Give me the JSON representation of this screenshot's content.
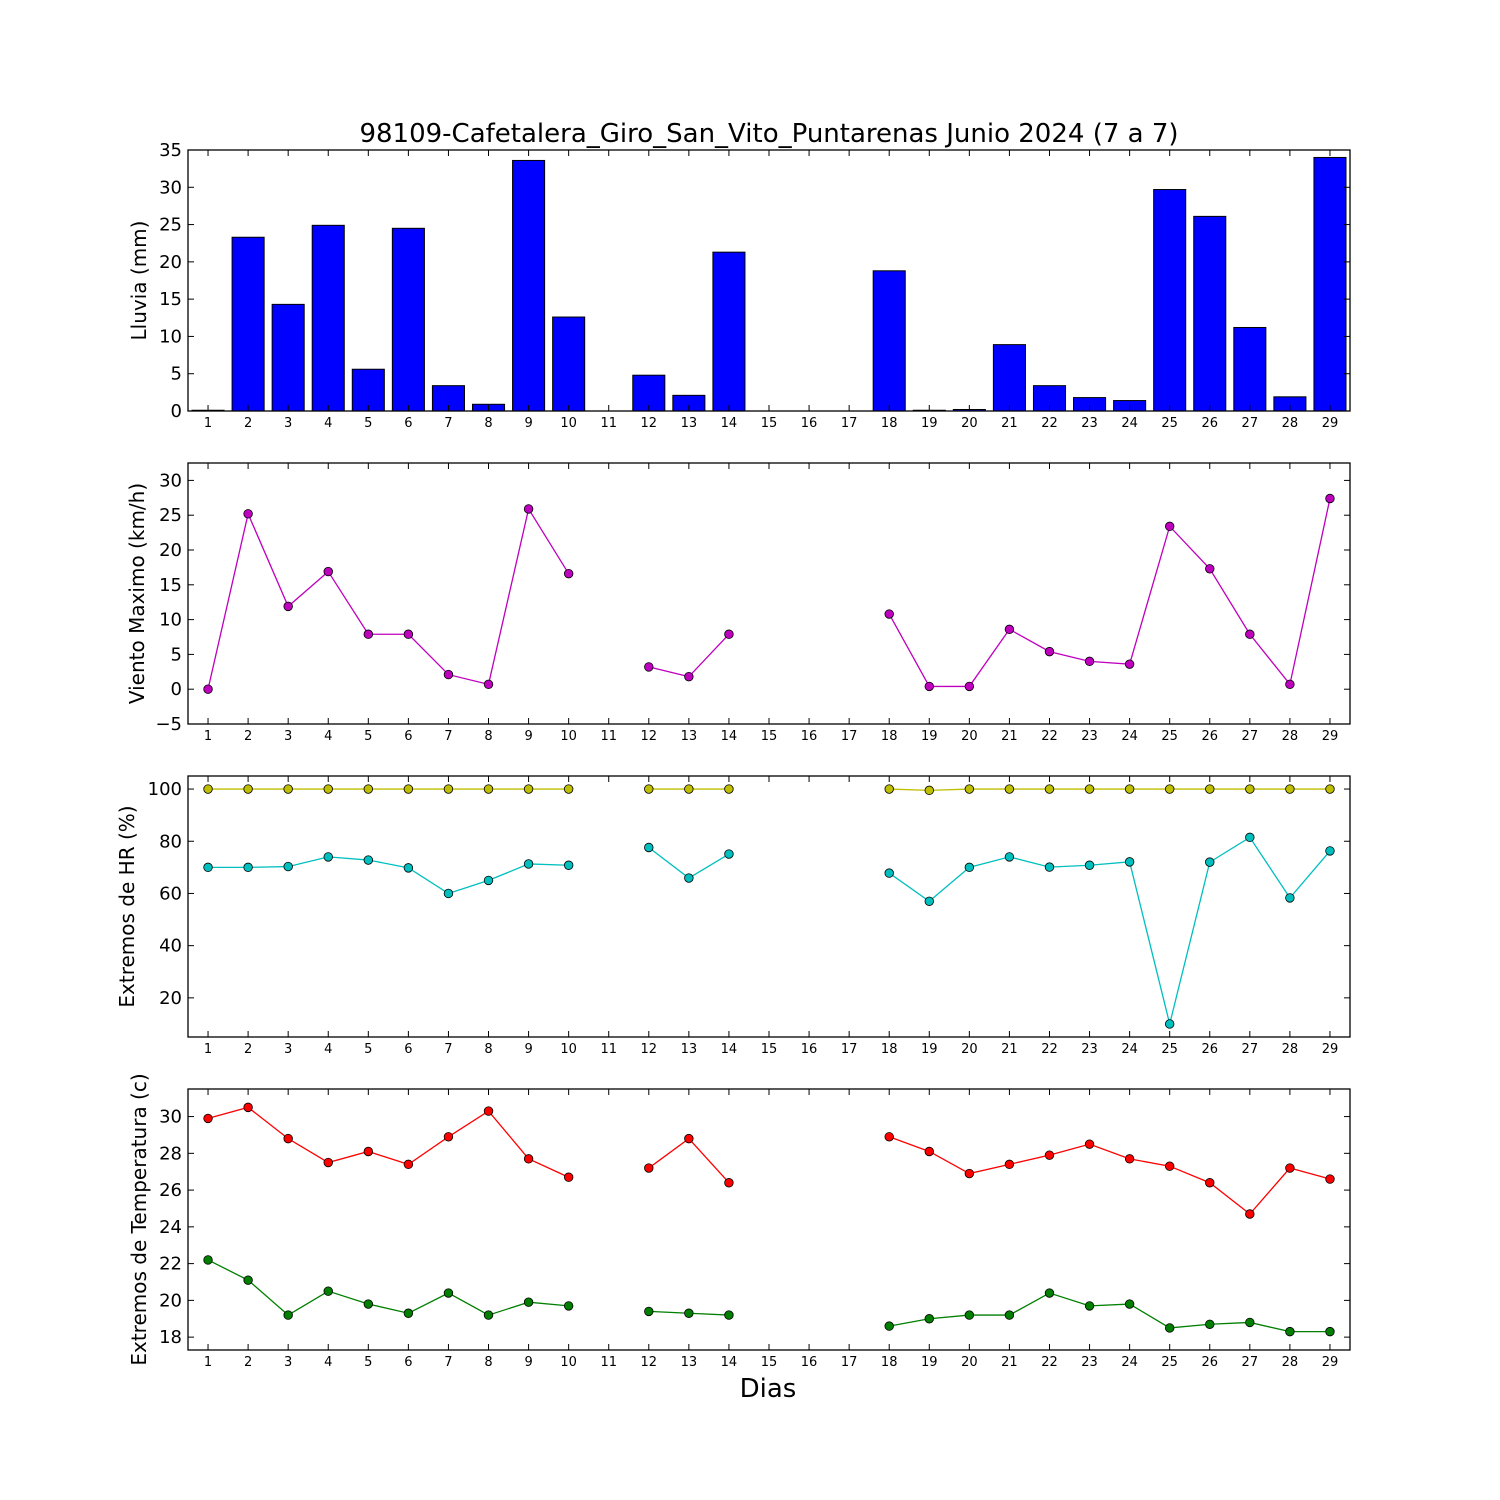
{
  "title": "98109-Cafetalera_Giro_San_Vito_Puntarenas Junio 2024  (7 a 7)",
  "xlabel": "Dias",
  "days": [
    "1",
    "2",
    "3",
    "4",
    "5",
    "6",
    "7",
    "8",
    "9",
    "10",
    "11",
    "12",
    "13",
    "14",
    "15",
    "16",
    "17",
    "18",
    "19",
    "20",
    "21",
    "22",
    "23",
    "24",
    "25",
    "26",
    "27",
    "28",
    "29"
  ],
  "chart_data": [
    {
      "type": "bar",
      "ylabel": "Lluvia (mm)",
      "ylim": [
        0,
        35
      ],
      "yticks": [
        0,
        5,
        10,
        15,
        20,
        25,
        30,
        35
      ],
      "color": "#0000ff",
      "series": [
        {
          "values": [
            0.1,
            23.3,
            14.3,
            24.9,
            5.6,
            24.5,
            3.4,
            0.9,
            33.6,
            12.6,
            0,
            4.8,
            2.1,
            21.3,
            0,
            0,
            0,
            18.8,
            0.1,
            0.2,
            8.9,
            3.4,
            1.8,
            1.4,
            29.7,
            26.1,
            11.2,
            1.9,
            34.0
          ]
        }
      ]
    },
    {
      "type": "line",
      "ylabel": "Viento Maximo (km/h)",
      "ylim": [
        -5,
        32.5
      ],
      "yticks": [
        -5,
        0,
        5,
        10,
        15,
        20,
        25,
        30
      ],
      "series": [
        {
          "color": "#bf00bf",
          "values": [
            0,
            25.2,
            11.9,
            16.9,
            7.9,
            7.9,
            2.1,
            0.7,
            25.9,
            16.6,
            null,
            3.2,
            1.8,
            7.9,
            null,
            null,
            null,
            10.8,
            0.4,
            0.4,
            8.6,
            5.4,
            4.0,
            3.6,
            23.4,
            17.3,
            7.9,
            0.7,
            27.4
          ]
        }
      ]
    },
    {
      "type": "line",
      "ylabel": "Extremos de HR (%)",
      "ylim": [
        5,
        105
      ],
      "yticks": [
        20,
        40,
        60,
        80,
        100
      ],
      "series": [
        {
          "color": "#bfbf00",
          "values": [
            100,
            100,
            100,
            100,
            100,
            100,
            100,
            100,
            100,
            100,
            null,
            100,
            100,
            100,
            null,
            null,
            null,
            100,
            99.5,
            100,
            100,
            100,
            100,
            100,
            100,
            100,
            100,
            100,
            100
          ]
        },
        {
          "color": "#00bfbf",
          "values": [
            70,
            70,
            70.3,
            74,
            72.8,
            69.8,
            60,
            65,
            71.3,
            70.8,
            null,
            77.6,
            65.9,
            75.1,
            null,
            null,
            null,
            67.8,
            57,
            70,
            74,
            70.1,
            70.8,
            72.1,
            10,
            72,
            81.5,
            58.3,
            76.3
          ]
        }
      ]
    },
    {
      "type": "line",
      "ylabel": "Extremos de Temperatura (c)",
      "ylim": [
        17.3,
        31.5
      ],
      "yticks": [
        18,
        20,
        22,
        24,
        26,
        28,
        30
      ],
      "series": [
        {
          "color": "#ff0000",
          "values": [
            29.9,
            30.5,
            28.8,
            27.5,
            28.1,
            27.4,
            28.9,
            30.3,
            27.7,
            26.7,
            null,
            27.2,
            28.8,
            26.4,
            null,
            null,
            null,
            28.9,
            28.1,
            26.9,
            27.4,
            27.9,
            28.5,
            27.7,
            27.3,
            26.4,
            24.7,
            27.2,
            26.6
          ]
        },
        {
          "color": "#007f00",
          "values": [
            22.2,
            21.1,
            19.2,
            20.5,
            19.8,
            19.3,
            20.4,
            19.2,
            19.9,
            19.7,
            null,
            19.4,
            19.3,
            19.2,
            null,
            null,
            null,
            18.6,
            19.0,
            19.2,
            19.2,
            20.4,
            19.7,
            19.8,
            18.5,
            18.7,
            18.8,
            18.3,
            18.3
          ]
        }
      ]
    }
  ]
}
